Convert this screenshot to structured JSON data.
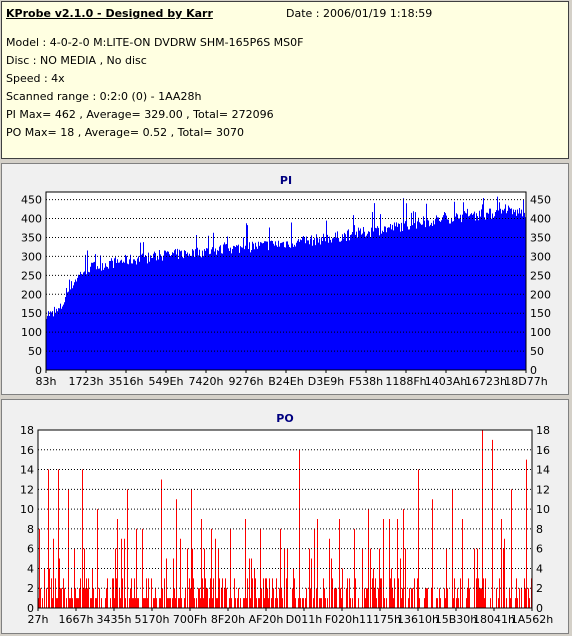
{
  "info": {
    "title": "KProbe v2.1.0 - Designed by Karr",
    "date": "Date : 2006/01/19 1:18:59",
    "lines": [
      "Model : 4-0-2-0 M:LITE-ON DVDRW SHM-165P6S MS0F",
      "Disc : NO MEDIA , No disc",
      "Speed : 4x",
      "Scanned range : 0:2:0 (0) - 1AA28h",
      "PI Max= 462 , Average= 329.00 , Total= 272096",
      "PO Max= 18 , Average= 0.52 , Total= 3070"
    ]
  },
  "chart_data": [
    {
      "type": "area",
      "title": "PI",
      "ylim": [
        0,
        470
      ],
      "yticks": [
        0,
        50,
        100,
        150,
        200,
        250,
        300,
        350,
        400,
        450
      ],
      "xtick_labels": [
        "83h",
        "1723h",
        "3516h",
        "549Eh",
        "7420h",
        "9276h",
        "B24Eh",
        "D3E9h",
        "F538h",
        "1188Fh",
        "1403Ah",
        "16723h",
        "18D77h"
      ],
      "grid": true,
      "color": "#0000ff",
      "series": [
        {
          "values": [
            150,
            145,
            165,
            210,
            240,
            262,
            270,
            275,
            280,
            283,
            287,
            290,
            292,
            295,
            297,
            300,
            302,
            304,
            306,
            308,
            310,
            312,
            314,
            316,
            318,
            320,
            322,
            324,
            326,
            328,
            330,
            332,
            334,
            336,
            338,
            340,
            342,
            345,
            348,
            350,
            353,
            356,
            360,
            363,
            366,
            370,
            373,
            376,
            380,
            383,
            386,
            390,
            393,
            396,
            400,
            402,
            404,
            406,
            408,
            410,
            412,
            414,
            415,
            416,
            417,
            418
          ],
          "max": [
            160,
            170,
            240,
            280,
            300,
            310,
            320,
            330,
            330,
            335,
            340,
            345,
            345,
            350,
            355,
            360,
            360,
            365,
            370,
            370,
            375,
            380,
            380,
            385,
            390,
            390,
            395,
            400,
            400,
            405,
            410,
            410,
            415,
            420,
            420,
            425,
            425,
            430,
            430,
            435,
            435,
            440,
            440,
            445,
            445,
            450,
            450,
            455,
            455,
            460,
            462,
            460,
            455,
            455,
            450,
            455,
            460,
            460,
            455,
            458,
            460,
            462,
            460,
            458,
            460,
            462
          ]
        }
      ]
    },
    {
      "type": "bar",
      "title": "PO",
      "ylim": [
        0,
        18
      ],
      "yticks": [
        0,
        2,
        4,
        6,
        8,
        10,
        12,
        14,
        16,
        18
      ],
      "xtick_labels": [
        "27h",
        "1667h",
        "3435h",
        "5170h",
        "700Fh",
        "8F20h",
        "AF20h",
        "D011h",
        "F020h",
        "11175h",
        "13610h",
        "15B30h",
        "18041h",
        "1A562h"
      ],
      "grid": true,
      "color": "#ff0000",
      "spikes": [
        [
          0.02,
          14
        ],
        [
          0.04,
          14
        ],
        [
          0.06,
          12
        ],
        [
          0.09,
          14
        ],
        [
          0.12,
          10
        ],
        [
          0.16,
          9
        ],
        [
          0.18,
          12
        ],
        [
          0.21,
          8
        ],
        [
          0.25,
          13
        ],
        [
          0.28,
          11
        ],
        [
          0.31,
          12
        ],
        [
          0.33,
          9
        ],
        [
          0.36,
          7
        ],
        [
          0.39,
          8
        ],
        [
          0.42,
          9
        ],
        [
          0.45,
          8
        ],
        [
          0.49,
          8
        ],
        [
          0.53,
          16
        ],
        [
          0.56,
          8
        ],
        [
          0.59,
          7
        ],
        [
          0.61,
          9
        ],
        [
          0.64,
          8
        ],
        [
          0.67,
          10
        ],
        [
          0.7,
          9
        ],
        [
          0.74,
          10
        ],
        [
          0.77,
          14
        ],
        [
          0.8,
          11
        ],
        [
          0.84,
          12
        ],
        [
          0.86,
          9
        ],
        [
          0.9,
          18
        ],
        [
          0.92,
          17
        ],
        [
          0.94,
          9
        ],
        [
          0.96,
          12
        ],
        [
          0.99,
          15
        ]
      ]
    }
  ]
}
